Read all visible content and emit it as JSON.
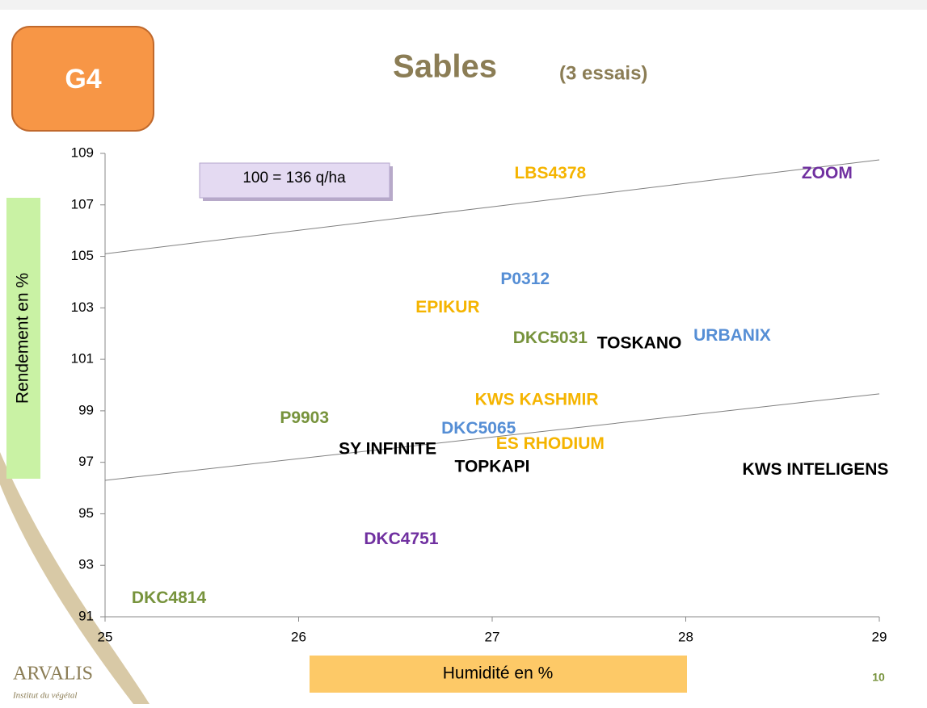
{
  "chart_data": {
    "type": "scatter",
    "badge": "G4",
    "title": "Sables",
    "subtitle": "(3 essais)",
    "annotation": "100  = 136 q/ha",
    "ylabel": "Rendement en %",
    "xlabel": "Humidité en %",
    "logo": "ARVALIS",
    "logo_subtitle": "Institut du végétal",
    "page_number": "10",
    "xlim": [
      25,
      29
    ],
    "xticks": [
      25,
      26,
      27,
      28,
      29
    ],
    "ylim": [
      91,
      109
    ],
    "yticks": [
      91,
      93,
      95,
      97,
      99,
      101,
      103,
      105,
      107,
      109
    ],
    "points": [
      {
        "label": "LBS4378",
        "x": 27.3,
        "y": 108.2,
        "color": "#f5b400"
      },
      {
        "label": "ZOOM",
        "x": 28.73,
        "y": 108.2,
        "color": "#7030a0"
      },
      {
        "label": "P0312",
        "x": 27.17,
        "y": 104.1,
        "color": "#558ed5"
      },
      {
        "label": "EPIKUR",
        "x": 26.77,
        "y": 103.0,
        "color": "#f5b400"
      },
      {
        "label": "DKC5031",
        "x": 27.3,
        "y": 101.8,
        "color": "#77933c"
      },
      {
        "label": "TOSKANO",
        "x": 27.76,
        "y": 101.6,
        "color": "#000000"
      },
      {
        "label": "URBANIX",
        "x": 28.24,
        "y": 101.9,
        "color": "#558ed5"
      },
      {
        "label": "KWS KASHMIR",
        "x": 27.23,
        "y": 99.4,
        "color": "#f5b400"
      },
      {
        "label": "P9903",
        "x": 26.03,
        "y": 98.7,
        "color": "#77933c"
      },
      {
        "label": "DKC5065",
        "x": 26.93,
        "y": 98.3,
        "color": "#558ed5"
      },
      {
        "label": "SY INFINITE",
        "x": 26.46,
        "y": 97.5,
        "color": "#000000"
      },
      {
        "label": "ES RHODIUM",
        "x": 27.3,
        "y": 97.7,
        "color": "#f5b400"
      },
      {
        "label": "TOPKAPI",
        "x": 27.0,
        "y": 96.8,
        "color": "#000000"
      },
      {
        "label": "KWS INTELIGENS",
        "x": 28.67,
        "y": 96.7,
        "color": "#000000"
      },
      {
        "label": "DKC4751",
        "x": 26.53,
        "y": 94.0,
        "color": "#7030a0"
      },
      {
        "label": "DKC4814",
        "x": 25.33,
        "y": 91.7,
        "color": "#77933c"
      }
    ],
    "trendlines": [
      {
        "x": [
          25,
          29
        ],
        "values": [
          105.1,
          108.75
        ],
        "color": "#808080"
      },
      {
        "x": [
          25,
          29
        ],
        "values": [
          96.3,
          99.66
        ],
        "color": "#808080"
      }
    ]
  }
}
